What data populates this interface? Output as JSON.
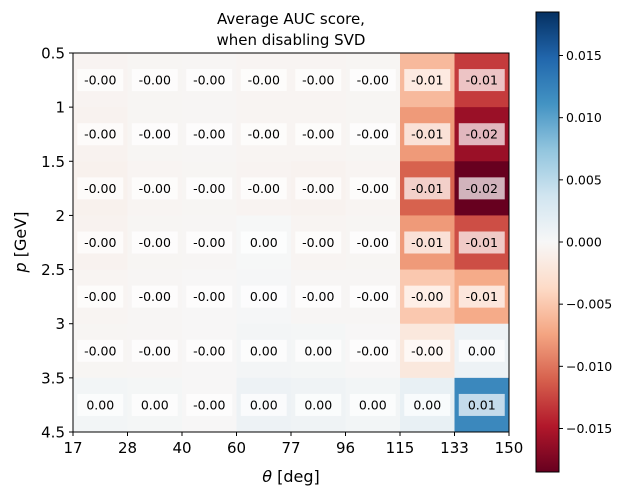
{
  "chart_data": {
    "type": "heatmap",
    "title": [
      "Average AUC score,",
      "when disabling SVD"
    ],
    "xlabel": "θ [deg]",
    "ylabel": "p [GeV]",
    "x_ticks": [
      "17",
      "28",
      "40",
      "60",
      "77",
      "96",
      "115",
      "133",
      "150"
    ],
    "y_ticks": [
      "0.5",
      "1",
      "1.5",
      "2",
      "2.5",
      "3",
      "3.5",
      "4.5"
    ],
    "values": [
      [
        -0.0005,
        -0.0003,
        -0.0002,
        -0.0004,
        -0.0004,
        -0.0003,
        -0.006,
        -0.013
      ],
      [
        -0.0006,
        -0.0003,
        -0.0002,
        -0.0004,
        -0.0004,
        -0.0003,
        -0.008,
        -0.016
      ],
      [
        -0.0008,
        -0.0004,
        -0.0003,
        -0.0005,
        -0.0006,
        -0.0004,
        -0.011,
        -0.019
      ],
      [
        -0.0006,
        -0.0003,
        -0.0002,
        0.0001,
        -0.0004,
        -0.0003,
        -0.008,
        -0.012
      ],
      [
        -0.0004,
        -0.0002,
        -0.0001,
        0.0002,
        -0.0002,
        -0.0002,
        -0.005,
        -0.007
      ],
      [
        -0.0003,
        -0.0002,
        -0.0001,
        0.0004,
        0.0003,
        -0.0001,
        -0.002,
        0.001
      ],
      [
        0.0005,
        0.0003,
        -0.0001,
        0.001,
        0.0008,
        0.0005,
        0.0015,
        0.012
      ]
    ],
    "labels": [
      [
        "-0.00",
        "-0.00",
        "-0.00",
        "-0.00",
        "-0.00",
        "-0.00",
        "-0.01",
        "-0.01"
      ],
      [
        "-0.00",
        "-0.00",
        "-0.00",
        "-0.00",
        "-0.00",
        "-0.00",
        "-0.01",
        "-0.02"
      ],
      [
        "-0.00",
        "-0.00",
        "-0.00",
        "-0.00",
        "-0.00",
        "-0.00",
        "-0.01",
        "-0.02"
      ],
      [
        "-0.00",
        "-0.00",
        "-0.00",
        "0.00",
        "-0.00",
        "-0.00",
        "-0.01",
        "-0.01"
      ],
      [
        "-0.00",
        "-0.00",
        "-0.00",
        "0.00",
        "-0.00",
        "-0.00",
        "-0.00",
        "-0.01"
      ],
      [
        "-0.00",
        "-0.00",
        "-0.00",
        "0.00",
        "0.00",
        "-0.00",
        "-0.00",
        "0.00"
      ],
      [
        "0.00",
        "0.00",
        "-0.00",
        "0.00",
        "0.00",
        "0.00",
        "0.00",
        "0.01"
      ]
    ],
    "colormap": "RdBu",
    "vmin": -0.0185,
    "vmax": 0.0185,
    "colorbar_ticks": [
      0.015,
      0.01,
      0.005,
      0.0,
      -0.005,
      -0.01,
      -0.015
    ],
    "colorbar_labels": [
      "0.015",
      "0.010",
      "0.005",
      "0.000",
      "−0.005",
      "−0.010",
      "−0.015"
    ]
  }
}
